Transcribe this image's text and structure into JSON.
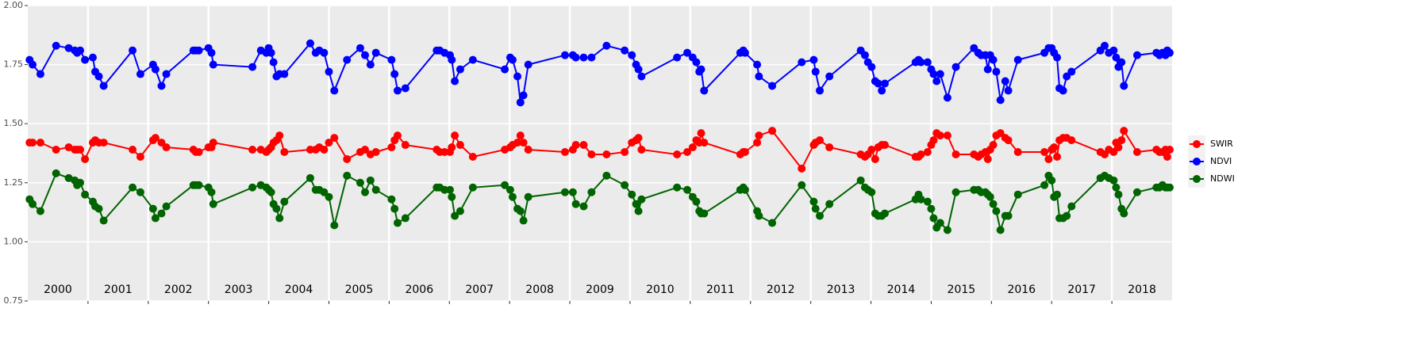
{
  "chart_data": {
    "type": "line",
    "x": [
      2000.03,
      2000.08,
      2000.21,
      2000.47,
      2000.68,
      2000.78,
      2000.82,
      2000.87,
      2000.95,
      2001.08,
      2001.12,
      2001.18,
      2001.26,
      2001.74,
      2001.87,
      2002.08,
      2002.12,
      2002.22,
      2002.3,
      2002.75,
      2002.79,
      2002.84,
      2003.0,
      2003.05,
      2003.08,
      2003.73,
      2003.87,
      2003.96,
      2004.0,
      2004.04,
      2004.08,
      2004.13,
      2004.18,
      2004.26,
      2004.69,
      2004.78,
      2004.84,
      2004.92,
      2005.0,
      2005.09,
      2005.3,
      2005.52,
      2005.6,
      2005.69,
      2005.78,
      2006.04,
      2006.09,
      2006.14,
      2006.27,
      2006.79,
      2006.84,
      2006.92,
      2007.01,
      2007.04,
      2007.09,
      2007.18,
      2007.39,
      2007.92,
      2008.01,
      2008.05,
      2008.13,
      2008.18,
      2008.23,
      2008.31,
      2008.92,
      2009.05,
      2009.1,
      2009.23,
      2009.36,
      2009.61,
      2009.91,
      2010.03,
      2010.1,
      2010.14,
      2010.19,
      2010.78,
      2010.95,
      2011.04,
      2011.1,
      2011.15,
      2011.18,
      2011.23,
      2011.83,
      2011.88,
      2011.91,
      2012.11,
      2012.14,
      2012.36,
      2012.85,
      2013.05,
      2013.08,
      2013.15,
      2013.31,
      2013.83,
      2013.9,
      2013.95,
      2014.01,
      2014.07,
      2014.12,
      2014.18,
      2014.23,
      2014.74,
      2014.79,
      2014.83,
      2014.94,
      2015.0,
      2015.04,
      2015.09,
      2015.15,
      2015.27,
      2015.41,
      2015.71,
      2015.78,
      2015.83,
      2015.9,
      2015.94,
      2015.98,
      2016.03,
      2016.08,
      2016.15,
      2016.23,
      2016.28,
      2016.44,
      2016.88,
      2016.95,
      2017.0,
      2017.04,
      2017.09,
      2017.13,
      2017.19,
      2017.25,
      2017.33,
      2017.81,
      2017.88,
      2017.95,
      2018.03,
      2018.07,
      2018.11,
      2018.16,
      2018.2,
      2018.42,
      2018.74,
      2018.79,
      2018.84,
      2018.89,
      2018.92,
      2018.96
    ],
    "series": [
      {
        "name": "SWIR",
        "color": "#ff0000",
        "values": [
          1.42,
          1.42,
          1.42,
          1.39,
          1.4,
          1.39,
          1.39,
          1.39,
          1.35,
          1.42,
          1.43,
          1.42,
          1.42,
          1.39,
          1.36,
          1.43,
          1.44,
          1.42,
          1.4,
          1.39,
          1.38,
          1.38,
          1.4,
          1.4,
          1.42,
          1.39,
          1.39,
          1.38,
          1.39,
          1.4,
          1.42,
          1.43,
          1.45,
          1.38,
          1.39,
          1.39,
          1.4,
          1.39,
          1.42,
          1.44,
          1.35,
          1.38,
          1.39,
          1.37,
          1.38,
          1.4,
          1.43,
          1.45,
          1.41,
          1.39,
          1.38,
          1.38,
          1.38,
          1.4,
          1.45,
          1.41,
          1.36,
          1.39,
          1.4,
          1.41,
          1.42,
          1.45,
          1.42,
          1.39,
          1.38,
          1.39,
          1.41,
          1.41,
          1.37,
          1.37,
          1.38,
          1.42,
          1.43,
          1.44,
          1.39,
          1.37,
          1.38,
          1.4,
          1.43,
          1.42,
          1.46,
          1.42,
          1.37,
          1.38,
          1.38,
          1.42,
          1.45,
          1.47,
          1.31,
          1.41,
          1.42,
          1.43,
          1.4,
          1.37,
          1.36,
          1.37,
          1.39,
          1.35,
          1.4,
          1.41,
          1.41,
          1.36,
          1.36,
          1.37,
          1.38,
          1.41,
          1.43,
          1.46,
          1.45,
          1.45,
          1.37,
          1.37,
          1.36,
          1.37,
          1.38,
          1.35,
          1.39,
          1.41,
          1.45,
          1.46,
          1.44,
          1.43,
          1.38,
          1.38,
          1.35,
          1.39,
          1.4,
          1.36,
          1.43,
          1.44,
          1.44,
          1.43,
          1.38,
          1.37,
          1.39,
          1.38,
          1.42,
          1.4,
          1.43,
          1.47,
          1.38,
          1.39,
          1.38,
          1.38,
          1.39,
          1.36,
          1.39
        ]
      },
      {
        "name": "NDVI",
        "color": "#0000ff",
        "values": [
          1.77,
          1.75,
          1.71,
          1.83,
          1.82,
          1.81,
          1.8,
          1.81,
          1.77,
          1.78,
          1.72,
          1.7,
          1.66,
          1.81,
          1.71,
          1.75,
          1.73,
          1.66,
          1.71,
          1.81,
          1.81,
          1.81,
          1.82,
          1.8,
          1.75,
          1.74,
          1.81,
          1.8,
          1.82,
          1.8,
          1.76,
          1.7,
          1.71,
          1.71,
          1.84,
          1.8,
          1.81,
          1.8,
          1.72,
          1.64,
          1.77,
          1.82,
          1.79,
          1.75,
          1.8,
          1.77,
          1.71,
          1.64,
          1.65,
          1.81,
          1.81,
          1.8,
          1.79,
          1.77,
          1.68,
          1.73,
          1.77,
          1.73,
          1.78,
          1.77,
          1.7,
          1.59,
          1.62,
          1.75,
          1.79,
          1.79,
          1.78,
          1.78,
          1.78,
          1.83,
          1.81,
          1.79,
          1.75,
          1.73,
          1.7,
          1.78,
          1.8,
          1.78,
          1.76,
          1.72,
          1.73,
          1.64,
          1.8,
          1.81,
          1.8,
          1.75,
          1.7,
          1.66,
          1.76,
          1.77,
          1.72,
          1.64,
          1.7,
          1.81,
          1.79,
          1.76,
          1.74,
          1.68,
          1.67,
          1.64,
          1.67,
          1.76,
          1.77,
          1.76,
          1.76,
          1.73,
          1.71,
          1.68,
          1.71,
          1.61,
          1.74,
          1.82,
          1.8,
          1.79,
          1.79,
          1.73,
          1.79,
          1.77,
          1.72,
          1.6,
          1.68,
          1.64,
          1.77,
          1.8,
          1.82,
          1.82,
          1.8,
          1.78,
          1.65,
          1.64,
          1.7,
          1.72,
          1.81,
          1.83,
          1.8,
          1.81,
          1.78,
          1.74,
          1.76,
          1.66,
          1.79,
          1.8,
          1.79,
          1.8,
          1.79,
          1.81,
          1.8
        ]
      },
      {
        "name": "NDWI",
        "color": "#006400",
        "values": [
          1.18,
          1.16,
          1.13,
          1.29,
          1.27,
          1.26,
          1.24,
          1.25,
          1.2,
          1.17,
          1.15,
          1.14,
          1.09,
          1.23,
          1.21,
          1.14,
          1.1,
          1.12,
          1.15,
          1.24,
          1.24,
          1.24,
          1.23,
          1.21,
          1.16,
          1.23,
          1.24,
          1.23,
          1.22,
          1.21,
          1.16,
          1.14,
          1.1,
          1.17,
          1.27,
          1.22,
          1.22,
          1.21,
          1.19,
          1.07,
          1.28,
          1.25,
          1.21,
          1.26,
          1.22,
          1.18,
          1.14,
          1.08,
          1.1,
          1.23,
          1.23,
          1.22,
          1.22,
          1.19,
          1.11,
          1.13,
          1.23,
          1.24,
          1.22,
          1.19,
          1.14,
          1.13,
          1.09,
          1.19,
          1.21,
          1.21,
          1.16,
          1.15,
          1.21,
          1.28,
          1.24,
          1.2,
          1.16,
          1.13,
          1.18,
          1.23,
          1.22,
          1.19,
          1.17,
          1.13,
          1.12,
          1.12,
          1.22,
          1.23,
          1.22,
          1.13,
          1.11,
          1.08,
          1.24,
          1.17,
          1.14,
          1.11,
          1.16,
          1.26,
          1.23,
          1.22,
          1.21,
          1.12,
          1.11,
          1.11,
          1.12,
          1.18,
          1.2,
          1.18,
          1.17,
          1.14,
          1.1,
          1.06,
          1.08,
          1.05,
          1.21,
          1.22,
          1.22,
          1.21,
          1.21,
          1.2,
          1.19,
          1.16,
          1.13,
          1.05,
          1.11,
          1.11,
          1.2,
          1.24,
          1.28,
          1.26,
          1.19,
          1.2,
          1.1,
          1.1,
          1.11,
          1.15,
          1.27,
          1.28,
          1.27,
          1.26,
          1.23,
          1.2,
          1.14,
          1.12,
          1.21,
          1.23,
          1.23,
          1.24,
          1.23,
          1.23,
          1.23
        ]
      }
    ],
    "xlim": [
      2000,
      2019
    ],
    "xticks": [
      2001,
      2002,
      2003,
      2004,
      2005,
      2006,
      2007,
      2008,
      2009,
      2010,
      2011,
      2012,
      2013,
      2014,
      2015,
      2016,
      2017,
      2018
    ],
    "xtick_labels": false,
    "year_labels": [
      "2000",
      "2001",
      "2002",
      "2003",
      "2004",
      "2005",
      "2006",
      "2007",
      "2008",
      "2009",
      "2010",
      "2011",
      "2012",
      "2013",
      "2014",
      "2015",
      "2016",
      "2017",
      "2018"
    ],
    "ylim": [
      0.75,
      2
    ],
    "yticks": [
      {
        "value": 0.75,
        "label": "0.75"
      },
      {
        "value": 1,
        "label": "1.00"
      },
      {
        "value": 1.25,
        "label": "1.25"
      },
      {
        "value": 1.5,
        "label": "1.50"
      },
      {
        "value": 1.75,
        "label": "1.75"
      },
      {
        "value": 2,
        "label": "2.00"
      }
    ],
    "grid": true,
    "legend": "right"
  }
}
